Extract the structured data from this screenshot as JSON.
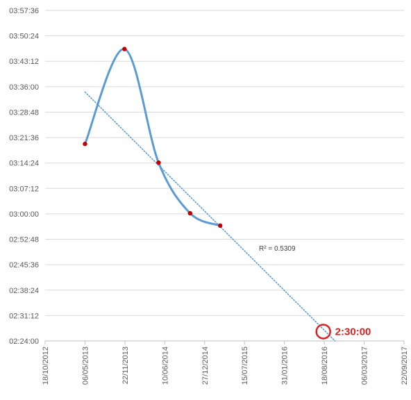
{
  "chart_data": {
    "type": "line",
    "title": "",
    "xlabel": "",
    "ylabel": "",
    "x_axis": {
      "type": "date",
      "ticks": [
        "18/10/2012",
        "06/05/2013",
        "22/11/2013",
        "10/06/2014",
        "27/12/2014",
        "15/07/2015",
        "31/01/2016",
        "18/08/2016",
        "06/03/2017",
        "22/09/2017"
      ],
      "range": [
        "18/10/2012",
        "22/09/2017"
      ]
    },
    "y_axis": {
      "type": "time",
      "ticks": [
        "02:24:00",
        "02:31:12",
        "02:38:24",
        "02:45:36",
        "02:52:48",
        "03:00:00",
        "03:07:12",
        "03:14:24",
        "03:21:36",
        "03:28:48",
        "03:36:00",
        "03:43:12",
        "03:50:24",
        "03:57:36"
      ],
      "range": [
        "02:24:00",
        "03:57:36"
      ]
    },
    "grid": {
      "horizontal": true,
      "vertical": false
    },
    "series": [
      {
        "style": "smooth-line-with-markers",
        "color": "#5b9bd5",
        "marker_color": "#c00000",
        "points": [
          {
            "x": "2013-05-06",
            "y": "03:19:48"
          },
          {
            "x": "2013-11-20",
            "y": "03:46:40"
          },
          {
            "x": "2014-05-10",
            "y": "03:14:30"
          },
          {
            "x": "2014-10-15",
            "y": "03:00:10"
          },
          {
            "x": "2015-03-15",
            "y": "02:56:40"
          }
        ]
      }
    ],
    "trendline": {
      "type": "linear",
      "style": "dotted",
      "color": "#5b9bd5",
      "r_squared_label": "R² = 0.5309",
      "start": {
        "x": "2013-05-06",
        "y": "03:34:30"
      },
      "end": {
        "x": "2016-10-11",
        "y": "02:24:00"
      }
    },
    "annotations": [
      {
        "text": "2:30:00",
        "color": "#e02020",
        "marker": "circle",
        "x": "2016-08-13",
        "y": "02:26:40"
      }
    ]
  }
}
